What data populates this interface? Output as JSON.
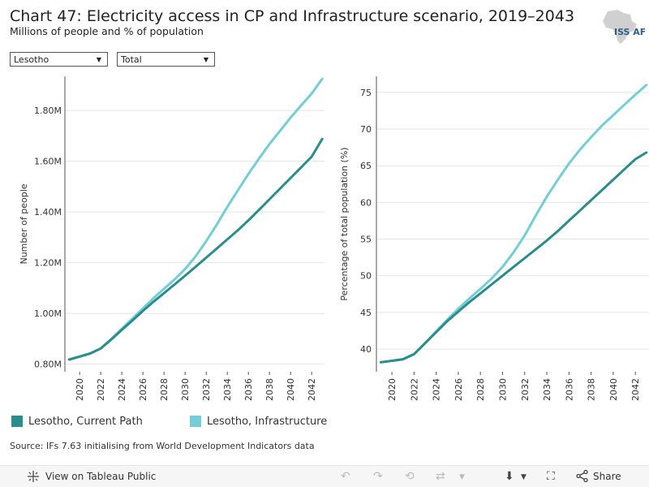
{
  "header": {
    "title": "Chart 47: Electricity access in CP and Infrastructure scenario, 2019–2043",
    "subtitle": "Millions of people and % of population",
    "logo_text": "ISS AFRICA"
  },
  "filters": {
    "country": "Lesotho",
    "category": "Total"
  },
  "colors": {
    "current_path": "#2a8c8c",
    "infrastructure": "#75cdd5",
    "axis": "#555555",
    "grid": "#e4e4e4"
  },
  "chart_data": [
    {
      "type": "line",
      "title": "",
      "xlabel": "",
      "ylabel": "Number of people",
      "xlim": [
        2018.6,
        2043.6
      ],
      "ylim": [
        0.77,
        1.935
      ],
      "x_ticks": [
        2020,
        2022,
        2024,
        2026,
        2028,
        2030,
        2032,
        2034,
        2036,
        2038,
        2040,
        2042
      ],
      "y_ticks": [
        0.8,
        1.0,
        1.2,
        1.4,
        1.6,
        1.8
      ],
      "y_tick_labels": [
        "0.80M",
        "1.00M",
        "1.20M",
        "1.40M",
        "1.60M",
        "1.80M"
      ],
      "x": [
        2019,
        2020,
        2021,
        2022,
        2023,
        2024,
        2025,
        2026,
        2027,
        2028,
        2029,
        2030,
        2031,
        2032,
        2033,
        2034,
        2035,
        2036,
        2037,
        2038,
        2039,
        2040,
        2041,
        2042,
        2043
      ],
      "series": [
        {
          "name": "Lesotho, Current Path",
          "color": "#2a8c8c",
          "values": [
            0.818,
            0.83,
            0.842,
            0.862,
            0.897,
            0.935,
            0.972,
            1.01,
            1.046,
            1.08,
            1.114,
            1.149,
            1.184,
            1.22,
            1.256,
            1.292,
            1.328,
            1.367,
            1.408,
            1.45,
            1.492,
            1.534,
            1.576,
            1.618,
            1.688
          ]
        },
        {
          "name": "Lesotho, Infrastructure",
          "color": "#75cdd5",
          "values": [
            0.818,
            0.83,
            0.842,
            0.862,
            0.9,
            0.94,
            0.98,
            1.02,
            1.06,
            1.097,
            1.134,
            1.175,
            1.225,
            1.285,
            1.35,
            1.42,
            1.485,
            1.55,
            1.61,
            1.668,
            1.72,
            1.772,
            1.82,
            1.867,
            1.925
          ]
        }
      ]
    },
    {
      "type": "line",
      "title": "",
      "xlabel": "",
      "ylabel": "Percentage of total population (%)",
      "xlim": [
        2018.6,
        2043.6
      ],
      "ylim": [
        36.9,
        77.2
      ],
      "x_ticks": [
        2020,
        2022,
        2024,
        2026,
        2028,
        2030,
        2032,
        2034,
        2036,
        2038,
        2040,
        2042
      ],
      "y_ticks": [
        40,
        45,
        50,
        55,
        60,
        65,
        70,
        75
      ],
      "y_tick_labels": [
        "40",
        "45",
        "50",
        "55",
        "60",
        "65",
        "70",
        "75"
      ],
      "x": [
        2019,
        2020,
        2021,
        2022,
        2023,
        2024,
        2025,
        2026,
        2027,
        2028,
        2029,
        2030,
        2031,
        2032,
        2033,
        2034,
        2035,
        2036,
        2037,
        2038,
        2039,
        2040,
        2041,
        2042,
        2043
      ],
      "series": [
        {
          "name": "Lesotho, Current Path",
          "color": "#2a8c8c",
          "values": [
            38.2,
            38.4,
            38.6,
            39.3,
            40.8,
            42.3,
            43.8,
            45.1,
            46.4,
            47.6,
            48.8,
            50.0,
            51.2,
            52.4,
            53.6,
            54.8,
            56.1,
            57.5,
            58.9,
            60.3,
            61.7,
            63.1,
            64.5,
            65.9,
            66.8
          ]
        },
        {
          "name": "Lesotho, Infrastructure",
          "color": "#75cdd5",
          "values": [
            38.2,
            38.4,
            38.6,
            39.3,
            40.8,
            42.4,
            44.0,
            45.5,
            46.9,
            48.2,
            49.6,
            51.2,
            53.2,
            55.5,
            58.2,
            60.8,
            63.1,
            65.3,
            67.2,
            68.9,
            70.5,
            71.9,
            73.3,
            74.7,
            76.0
          ]
        }
      ]
    }
  ],
  "legend": [
    {
      "label": "Lesotho, Current Path",
      "color": "#2a8c8c"
    },
    {
      "label": "Lesotho, Infrastructure",
      "color": "#75cdd5"
    }
  ],
  "source": "Source: IFs 7.63 initialising from World Development Indicators data",
  "footer": {
    "view_link": "View on Tableau Public",
    "share_label": "Share"
  }
}
